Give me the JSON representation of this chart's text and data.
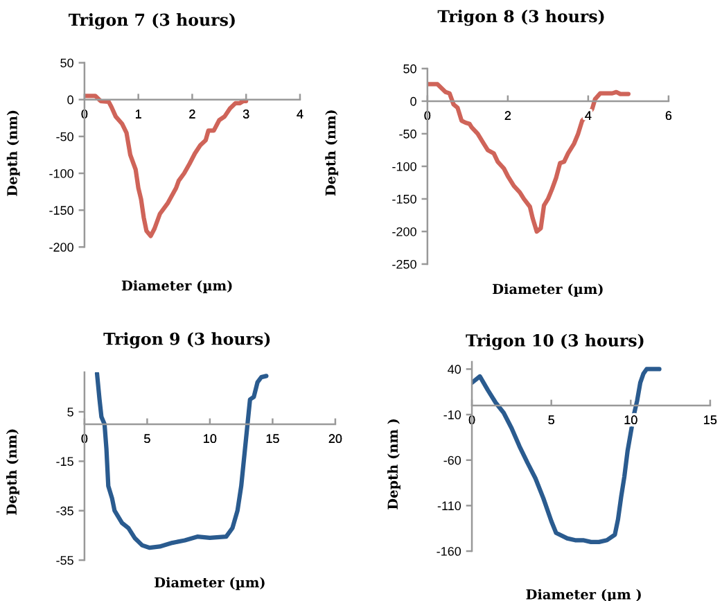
{
  "chart_data": [
    {
      "type": "line",
      "title": "Trigon 7 (3 hours)",
      "xlabel": "Diameter (µm)",
      "ylabel": "Depth (nm)",
      "xlim": [
        0,
        4
      ],
      "xticks": [
        0,
        1,
        2,
        3,
        4
      ],
      "ylim": [
        -200,
        50
      ],
      "yticks": [
        50,
        0,
        -50,
        -100,
        -150,
        -200
      ],
      "grid": false,
      "marker": "none",
      "line_style": "solid",
      "series": [
        {
          "color": "#cf6459",
          "x": [
            0,
            0.2,
            0.3,
            0.45,
            0.5,
            0.58,
            0.7,
            0.78,
            0.85,
            0.95,
            1.0,
            1.05,
            1.1,
            1.15,
            1.23,
            1.3,
            1.4,
            1.55,
            1.7,
            1.75,
            1.85,
            1.95,
            2.05,
            2.15,
            2.25,
            2.3,
            2.4,
            2.5,
            2.6,
            2.7,
            2.8,
            2.88,
            2.95,
            3.0
          ],
          "values": [
            5,
            5,
            -2,
            -3,
            -10,
            -23,
            -33,
            -45,
            -75,
            -95,
            -120,
            -135,
            -160,
            -178,
            -185,
            -175,
            -155,
            -140,
            -120,
            -110,
            -100,
            -87,
            -73,
            -62,
            -55,
            -42,
            -42,
            -28,
            -23,
            -12,
            -5,
            -5,
            -2,
            -2
          ]
        }
      ]
    },
    {
      "type": "line",
      "title": "Trigon 8 (3 hours)",
      "xlabel": "Diameter (µm)",
      "ylabel": "Depth (nm)",
      "xlim": [
        0,
        6
      ],
      "xticks": [
        0,
        2,
        4,
        6
      ],
      "ylim": [
        -250,
        50
      ],
      "yticks": [
        50,
        0,
        -50,
        -100,
        -150,
        -200,
        -250
      ],
      "grid": false,
      "marker": "none",
      "line_style": "solid",
      "series": [
        {
          "color": "#cf6459",
          "x": [
            0,
            0.25,
            0.45,
            0.55,
            0.65,
            0.75,
            0.85,
            0.95,
            1.05,
            1.1,
            1.25,
            1.4,
            1.5,
            1.65,
            1.75,
            1.9,
            2.0,
            2.15,
            2.3,
            2.4,
            2.55,
            2.62,
            2.72,
            2.82,
            2.9,
            3.0,
            3.1,
            3.2,
            3.3,
            3.4,
            3.5,
            3.65,
            3.75,
            3.85,
            4.0,
            4.1,
            4.17,
            4.3,
            4.5,
            4.6,
            4.7,
            4.8,
            5.0
          ],
          "values": [
            26,
            26,
            14,
            12,
            -5,
            -10,
            -30,
            -33,
            -35,
            -40,
            -50,
            -65,
            -75,
            -80,
            -93,
            -103,
            -115,
            -130,
            -140,
            -150,
            -162,
            -180,
            -200,
            -195,
            -160,
            -150,
            -135,
            -118,
            -95,
            -93,
            -80,
            -65,
            -50,
            -30,
            -20,
            -12,
            3,
            12,
            12,
            12,
            14,
            11,
            11
          ]
        }
      ]
    },
    {
      "type": "line",
      "title": "Trigon 9 (3 hours)",
      "xlabel": "Diameter (µm)",
      "ylabel": "Depth (nm)",
      "xlim": [
        0,
        20
      ],
      "xticks": [
        0,
        5,
        10,
        15,
        20
      ],
      "ylim": [
        -55,
        21
      ],
      "yticks": [
        5,
        -15,
        -35,
        -55
      ],
      "grid": false,
      "marker": "none",
      "line_style": "solid",
      "series": [
        {
          "color": "#2a5b8f",
          "x": [
            1.0,
            1.2,
            1.35,
            1.6,
            1.75,
            1.9,
            2.2,
            2.4,
            3.0,
            3.5,
            4.0,
            4.6,
            5.2,
            6.0,
            7.0,
            8.0,
            9.0,
            10.0,
            11.3,
            11.8,
            12.2,
            12.5,
            12.8,
            13.0,
            13.2,
            13.5,
            13.8,
            14.1,
            14.5
          ],
          "values": [
            20.5,
            10,
            3,
            0,
            -10,
            -25,
            -30,
            -35,
            -40,
            -42,
            -46,
            -49,
            -50,
            -49.5,
            -48,
            -47,
            -45.5,
            -46,
            -45.5,
            -42,
            -35,
            -25,
            -10,
            0,
            10,
            11,
            17,
            19,
            19.5
          ]
        }
      ]
    },
    {
      "type": "line",
      "title": "Trigon 10 (3 hours)",
      "xlabel": "Diameter (µm )",
      "ylabel": "Depth (nm )",
      "xlim": [
        0,
        15
      ],
      "xticks": [
        0,
        5,
        10,
        15
      ],
      "ylim": [
        -160,
        48
      ],
      "yticks": [
        40,
        -10,
        -60,
        -110,
        -160
      ],
      "grid": false,
      "marker": "none",
      "line_style": "solid",
      "series": [
        {
          "color": "#2a5b8f",
          "x": [
            0,
            0.5,
            1.0,
            1.5,
            2.0,
            2.5,
            3.0,
            3.5,
            4.0,
            4.5,
            5.0,
            5.3,
            6.0,
            6.5,
            7.0,
            7.5,
            8.0,
            8.5,
            9.0,
            9.2,
            9.4,
            9.6,
            9.8,
            10.0,
            10.2,
            10.4,
            10.6,
            10.8,
            11.0,
            11.5,
            11.8
          ],
          "values": [
            25,
            32,
            17,
            3,
            -8,
            -25,
            -45,
            -63,
            -80,
            -102,
            -127,
            -140,
            -146,
            -148,
            -148,
            -150,
            -150,
            -148,
            -142,
            -125,
            -100,
            -78,
            -50,
            -30,
            -10,
            5,
            25,
            35,
            40,
            40,
            40
          ]
        }
      ]
    }
  ]
}
